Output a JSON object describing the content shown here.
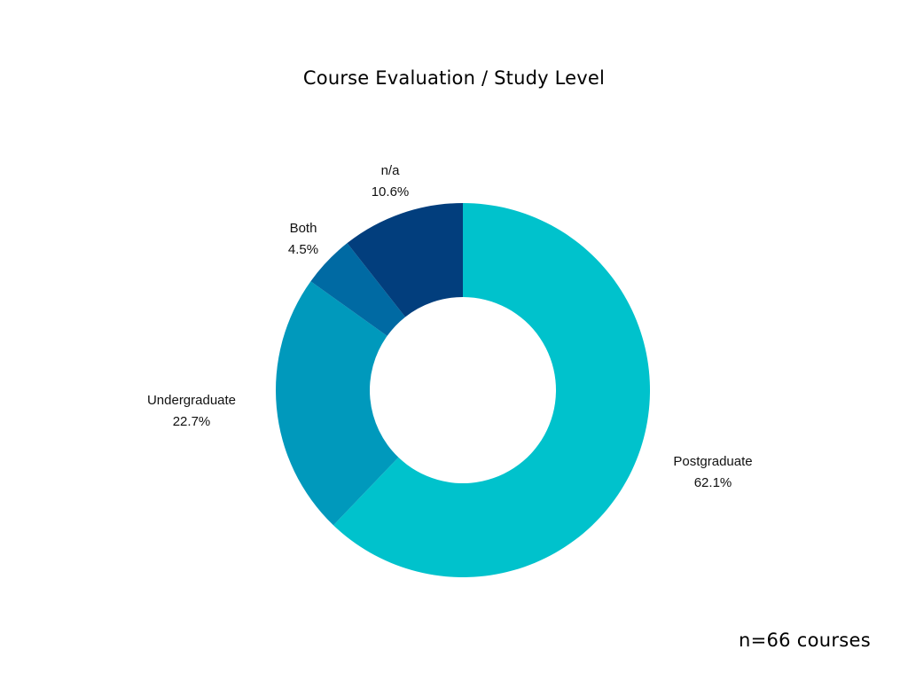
{
  "chart_data": {
    "type": "pie",
    "variant": "donut",
    "title": "Course Evaluation / Study Level",
    "categories": [
      "Postgraduate",
      "Undergraduate",
      "Both",
      "n/a"
    ],
    "values": [
      62.1,
      22.7,
      4.5,
      10.6
    ],
    "value_labels": [
      "62.1%",
      "22.7%",
      "4.5%",
      "10.6%"
    ],
    "colors": [
      "#00C2CC",
      "#0099BC",
      "#006AA3",
      "#023E7D"
    ],
    "start_angle": "12 o'clock",
    "direction": "clockwise",
    "legend": "none (labels beside slices)"
  },
  "footnote": "n=66 courses"
}
